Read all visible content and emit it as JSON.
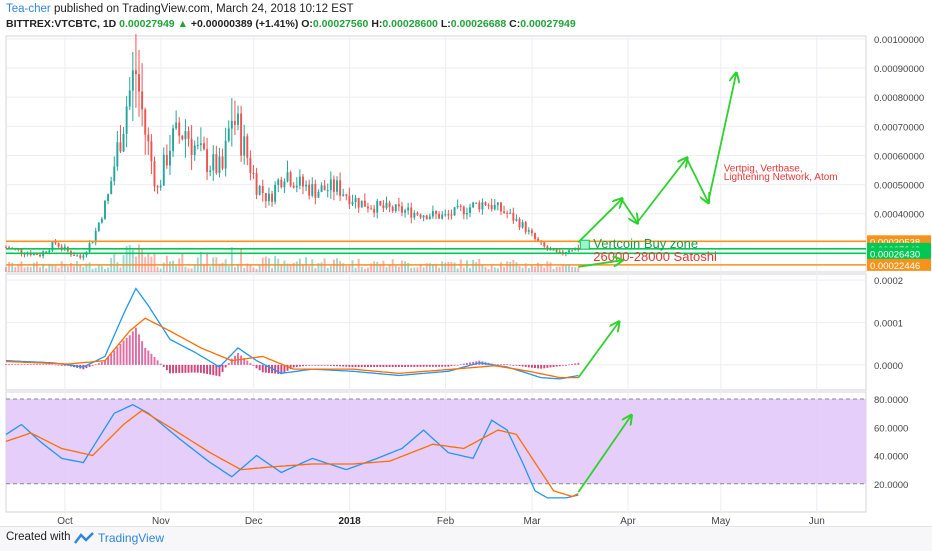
{
  "header": {
    "author": "Tea-cher",
    "published_text": "published on TradingView.com, March 24, 2018 10:12 EST",
    "symbol": "BITTREX:VTCBTC, 1D",
    "last": "0.00027949",
    "change": "+0.00000389 (+1.41%)",
    "o_label": "O:",
    "o_value": "0.00027560",
    "h_label": "H:",
    "h_value": "0.00028600",
    "l_label": "L:",
    "l_value": "0.00026688",
    "c_label": "C:",
    "c_value": "0.00027949"
  },
  "footer": {
    "created_with": "Created with",
    "brand": "TradingView"
  },
  "colors": {
    "up": "#26a69a",
    "down": "#ef5350",
    "orange": "#f7931a",
    "green": "#00c853",
    "arrow": "#2ed12e",
    "annotation": "#e53935",
    "macd": "#2196f3",
    "signal": "#ff6d00",
    "stoch_bg": "#e1c6f9"
  },
  "chart_data": [
    {
      "type": "candlestick",
      "ylim": [
        0.0002,
        0.00101
      ],
      "y_ticks": [
        "0.00100000",
        "0.00090000",
        "0.00080000",
        "0.00070000",
        "0.00060000",
        "0.00050000",
        "0.00040000"
      ],
      "x_ticks": [
        "Oct",
        "Nov",
        "Dec",
        "2018",
        "Feb",
        "Mar",
        "Apr",
        "May",
        "Jun"
      ],
      "series_description": "daily candles Sep 2017 - Mar 2018",
      "x_months": [
        "2017-09-20",
        "2017-10-01",
        "2017-11-01",
        "2017-12-01",
        "2018-01-01",
        "2018-02-01",
        "2018-03-01",
        "2018-04-01",
        "2018-05-01",
        "2018-06-01",
        "2018-06-25"
      ],
      "closes_by_month": {
        "keypoints": [
          [
            "2017-09-20",
            0.000285
          ],
          [
            "2017-09-25",
            0.00027
          ],
          [
            "2017-10-01",
            0.00026
          ],
          [
            "2017-10-06",
            0.0003
          ],
          [
            "2017-10-10",
            0.00027
          ],
          [
            "2017-10-14",
            0.00025
          ],
          [
            "2017-10-18",
            0.00031
          ],
          [
            "2017-10-23",
            0.00046
          ],
          [
            "2017-10-26",
            0.00062
          ],
          [
            "2017-10-29",
            0.00078
          ],
          [
            "2017-11-01",
            0.00089
          ],
          [
            "2017-11-04",
            0.00068
          ],
          [
            "2017-11-08",
            0.00048
          ],
          [
            "2017-11-12",
            0.00064
          ],
          [
            "2017-11-17",
            0.00069
          ],
          [
            "2017-11-21",
            0.00061
          ],
          [
            "2017-11-25",
            0.00057
          ],
          [
            "2017-11-29",
            0.00055
          ],
          [
            "2017-12-02",
            0.00074
          ],
          [
            "2017-12-05",
            0.00066
          ],
          [
            "2017-12-10",
            0.0005
          ],
          [
            "2017-12-14",
            0.00045
          ],
          [
            "2017-12-19",
            0.00055
          ],
          [
            "2017-12-24",
            0.0005
          ],
          [
            "2017-12-29",
            0.00048
          ],
          [
            "2018-01-05",
            0.00049
          ],
          [
            "2018-01-12",
            0.00044
          ],
          [
            "2018-01-19",
            0.00042
          ],
          [
            "2018-01-26",
            0.00041
          ],
          [
            "2018-02-02",
            0.0004
          ],
          [
            "2018-02-09",
            0.00039
          ],
          [
            "2018-02-16",
            0.00042
          ],
          [
            "2018-02-22",
            0.00044
          ],
          [
            "2018-03-01",
            0.0004
          ],
          [
            "2018-03-06",
            0.00036
          ],
          [
            "2018-03-11",
            0.0003
          ],
          [
            "2018-03-15",
            0.00027
          ],
          [
            "2018-03-18",
            0.00026
          ],
          [
            "2018-03-21",
            0.00028
          ],
          [
            "2018-03-24",
            0.00028
          ]
        ]
      },
      "horizontal_levels": [
        {
          "value": 0.00030538,
          "label": "0.00030538",
          "color": "orange"
        },
        {
          "value": 0.00027949,
          "label": "0.00027949",
          "color": "green"
        },
        {
          "value": 0.0002643,
          "label": "0.00026430",
          "color": "green"
        },
        {
          "value": 0.00022446,
          "label": "0.00022446",
          "color": "orange"
        }
      ],
      "annotations": [
        {
          "text": "Vertcoin Buy zone",
          "color": "green"
        },
        {
          "text": "26000-28000 Satoshi",
          "color": "red"
        },
        {
          "text": "Vertpig, Vertbase,",
          "color": "red"
        },
        {
          "text": "Lightening Network, Atom",
          "color": "red"
        }
      ],
      "forecast_path": [
        [
          "2018-03-24",
          0.000302
        ],
        [
          "2018-04-07",
          0.00045
        ],
        [
          "2018-04-12",
          0.00037
        ],
        [
          "2018-04-28",
          0.00059
        ],
        [
          "2018-05-05",
          0.00044
        ],
        [
          "2018-05-14",
          0.00088
        ]
      ],
      "volume_arrow": [
        [
          "2018-03-24",
          0.000218
        ],
        [
          "2018-04-07",
          0.00024
        ]
      ]
    },
    {
      "type": "line",
      "name": "MACD",
      "ylim": [
        -5.92e-05,
        0.0002143
      ],
      "y_ticks": [
        "0.0002",
        "0.0001",
        "0.0000"
      ],
      "series": [
        {
          "name": "MACD",
          "values": [
            [
              "2017-09-20",
              1e-05
            ],
            [
              "2017-10-05",
              5e-06
            ],
            [
              "2017-10-15",
              -5e-06
            ],
            [
              "2017-10-22",
              2e-05
            ],
            [
              "2017-10-28",
              0.00012
            ],
            [
              "2017-11-01",
              0.00018
            ],
            [
              "2017-11-05",
              0.00014
            ],
            [
              "2017-11-12",
              6e-05
            ],
            [
              "2017-11-20",
              3e-05
            ],
            [
              "2017-11-28",
              -5e-06
            ],
            [
              "2017-12-04",
              4e-05
            ],
            [
              "2017-12-10",
              1e-05
            ],
            [
              "2017-12-18",
              -2e-05
            ],
            [
              "2017-12-28",
              -1e-05
            ],
            [
              "2018-01-10",
              -1.5e-05
            ],
            [
              "2018-01-25",
              -2.5e-05
            ],
            [
              "2018-02-10",
              -1.5e-05
            ],
            [
              "2018-02-20",
              5e-06
            ],
            [
              "2018-03-01",
              -5e-06
            ],
            [
              "2018-03-12",
              -3e-05
            ],
            [
              "2018-03-18",
              -3.3e-05
            ],
            [
              "2018-03-24",
              -2.5e-05
            ]
          ]
        },
        {
          "name": "Signal",
          "values": [
            [
              "2017-09-20",
              8e-06
            ],
            [
              "2017-10-10",
              2e-06
            ],
            [
              "2017-10-22",
              1e-05
            ],
            [
              "2017-10-30",
              8e-05
            ],
            [
              "2017-11-04",
              0.00011
            ],
            [
              "2017-11-12",
              8e-05
            ],
            [
              "2017-11-22",
              4e-05
            ],
            [
              "2017-12-02",
              1e-05
            ],
            [
              "2017-12-12",
              2e-05
            ],
            [
              "2017-12-22",
              -1e-05
            ],
            [
              "2018-01-10",
              -1e-05
            ],
            [
              "2018-01-25",
              -2e-05
            ],
            [
              "2018-02-15",
              -8e-06
            ],
            [
              "2018-02-25",
              -2e-06
            ],
            [
              "2018-03-08",
              -1.5e-05
            ],
            [
              "2018-03-18",
              -3e-05
            ],
            [
              "2018-03-24",
              -3e-05
            ]
          ]
        }
      ],
      "forecast_arrow": [
        [
          "2018-03-24",
          -3e-05
        ],
        [
          "2018-04-06",
          0.0001
        ]
      ]
    },
    {
      "type": "line",
      "name": "Stochastic RSI",
      "ylim": [
        0,
        85
      ],
      "y_ticks": [
        "80.0000",
        "60.0000",
        "40.0000",
        "20.0000"
      ],
      "band": [
        20,
        80
      ],
      "series": [
        {
          "name": "K",
          "values": [
            [
              "2017-09-20",
              55
            ],
            [
              "2017-09-25",
              62
            ],
            [
              "2017-10-01",
              50
            ],
            [
              "2017-10-08",
              38
            ],
            [
              "2017-10-15",
              35
            ],
            [
              "2017-10-25",
              70
            ],
            [
              "2017-10-31",
              76
            ],
            [
              "2017-11-05",
              70
            ],
            [
              "2017-11-15",
              52
            ],
            [
              "2017-11-25",
              35
            ],
            [
              "2017-12-02",
              25
            ],
            [
              "2017-12-10",
              40
            ],
            [
              "2017-12-18",
              28
            ],
            [
              "2017-12-28",
              38
            ],
            [
              "2018-01-08",
              30
            ],
            [
              "2018-01-18",
              38
            ],
            [
              "2018-01-26",
              45
            ],
            [
              "2018-02-02",
              58
            ],
            [
              "2018-02-10",
              42
            ],
            [
              "2018-02-18",
              38
            ],
            [
              "2018-02-24",
              65
            ],
            [
              "2018-03-01",
              58
            ],
            [
              "2018-03-06",
              35
            ],
            [
              "2018-03-10",
              15
            ],
            [
              "2018-03-14",
              10
            ],
            [
              "2018-03-20",
              10
            ],
            [
              "2018-03-24",
              12
            ]
          ]
        },
        {
          "name": "D",
          "values": [
            [
              "2017-09-20",
              50
            ],
            [
              "2017-09-28",
              56
            ],
            [
              "2017-10-08",
              45
            ],
            [
              "2017-10-18",
              40
            ],
            [
              "2017-10-28",
              62
            ],
            [
              "2017-11-03",
              72
            ],
            [
              "2017-11-12",
              60
            ],
            [
              "2017-11-25",
              42
            ],
            [
              "2017-12-05",
              30
            ],
            [
              "2017-12-15",
              32
            ],
            [
              "2017-12-28",
              34
            ],
            [
              "2018-01-10",
              34
            ],
            [
              "2018-01-22",
              36
            ],
            [
              "2018-02-05",
              48
            ],
            [
              "2018-02-15",
              45
            ],
            [
              "2018-02-26",
              58
            ],
            [
              "2018-03-04",
              55
            ],
            [
              "2018-03-10",
              35
            ],
            [
              "2018-03-16",
              15
            ],
            [
              "2018-03-22",
              11
            ],
            [
              "2018-03-24",
              13
            ]
          ]
        }
      ],
      "forecast_arrow": [
        [
          "2018-03-24",
          14
        ],
        [
          "2018-04-10",
          68
        ]
      ]
    }
  ]
}
